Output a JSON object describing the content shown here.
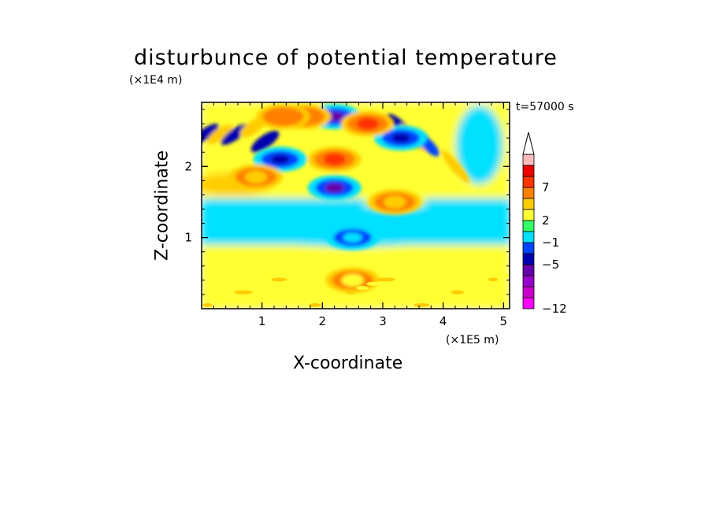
{
  "chart_data": {
    "type": "heatmap",
    "title": "disturbunce of potential temperature",
    "xlabel": "X-coordinate",
    "ylabel": "Z-coordinate",
    "x_unit_label": "(×1E5 m)",
    "y_unit_label": "(×1E4 m)",
    "time_label": "t=57000 s",
    "xlim": [
      0,
      5.1
    ],
    "ylim": [
      0,
      2.9
    ],
    "x_ticks": [
      1,
      2,
      3,
      4,
      5
    ],
    "y_ticks": [
      1,
      2
    ],
    "colorbar": {
      "levels": [
        -12,
        -11,
        -9,
        -7,
        -5,
        -3,
        -1,
        1,
        2,
        3,
        5,
        7,
        9,
        11
      ],
      "tick_labels": [
        "-12",
        "-5",
        "-1",
        "2",
        "7"
      ],
      "tick_values": [
        -12,
        -5,
        -1,
        2,
        7
      ],
      "extend": "max",
      "colors": [
        "#ff00ff",
        "#cc00cc",
        "#9900cc",
        "#6600aa",
        "#0000b0",
        "#0044ff",
        "#00e0ff",
        "#33ff66",
        "#ffff33",
        "#ffcc00",
        "#ff8000",
        "#ff3300",
        "#ee0000",
        "#ffbbbb"
      ],
      "extend_color": "#ffffff"
    },
    "features": [
      {
        "kind": "negative",
        "x": 2.2,
        "z": 1.7,
        "value": -7
      },
      {
        "kind": "negative",
        "x": 2.2,
        "z": 2.7,
        "value": -7
      },
      {
        "kind": "negative",
        "x": 1.3,
        "z": 2.1,
        "value": -5
      },
      {
        "kind": "negative",
        "x": 3.3,
        "z": 2.4,
        "value": -5
      },
      {
        "kind": "positive",
        "x": 2.75,
        "z": 2.6,
        "value": 7
      },
      {
        "kind": "positive",
        "x": 2.2,
        "z": 2.1,
        "value": 7
      },
      {
        "kind": "positive",
        "x": 1.7,
        "z": 2.7,
        "value": 5
      },
      {
        "kind": "positive",
        "x": 1.35,
        "z": 2.7,
        "value": 5
      },
      {
        "kind": "positive",
        "x": 0.9,
        "z": 1.85,
        "value": 4
      },
      {
        "kind": "positive",
        "x": 3.2,
        "z": 1.5,
        "value": 3
      },
      {
        "kind": "negative",
        "x": 2.5,
        "z": 1.0,
        "value": -1
      },
      {
        "kind": "positive",
        "x": 2.5,
        "z": 0.4,
        "value": 2
      }
    ]
  }
}
